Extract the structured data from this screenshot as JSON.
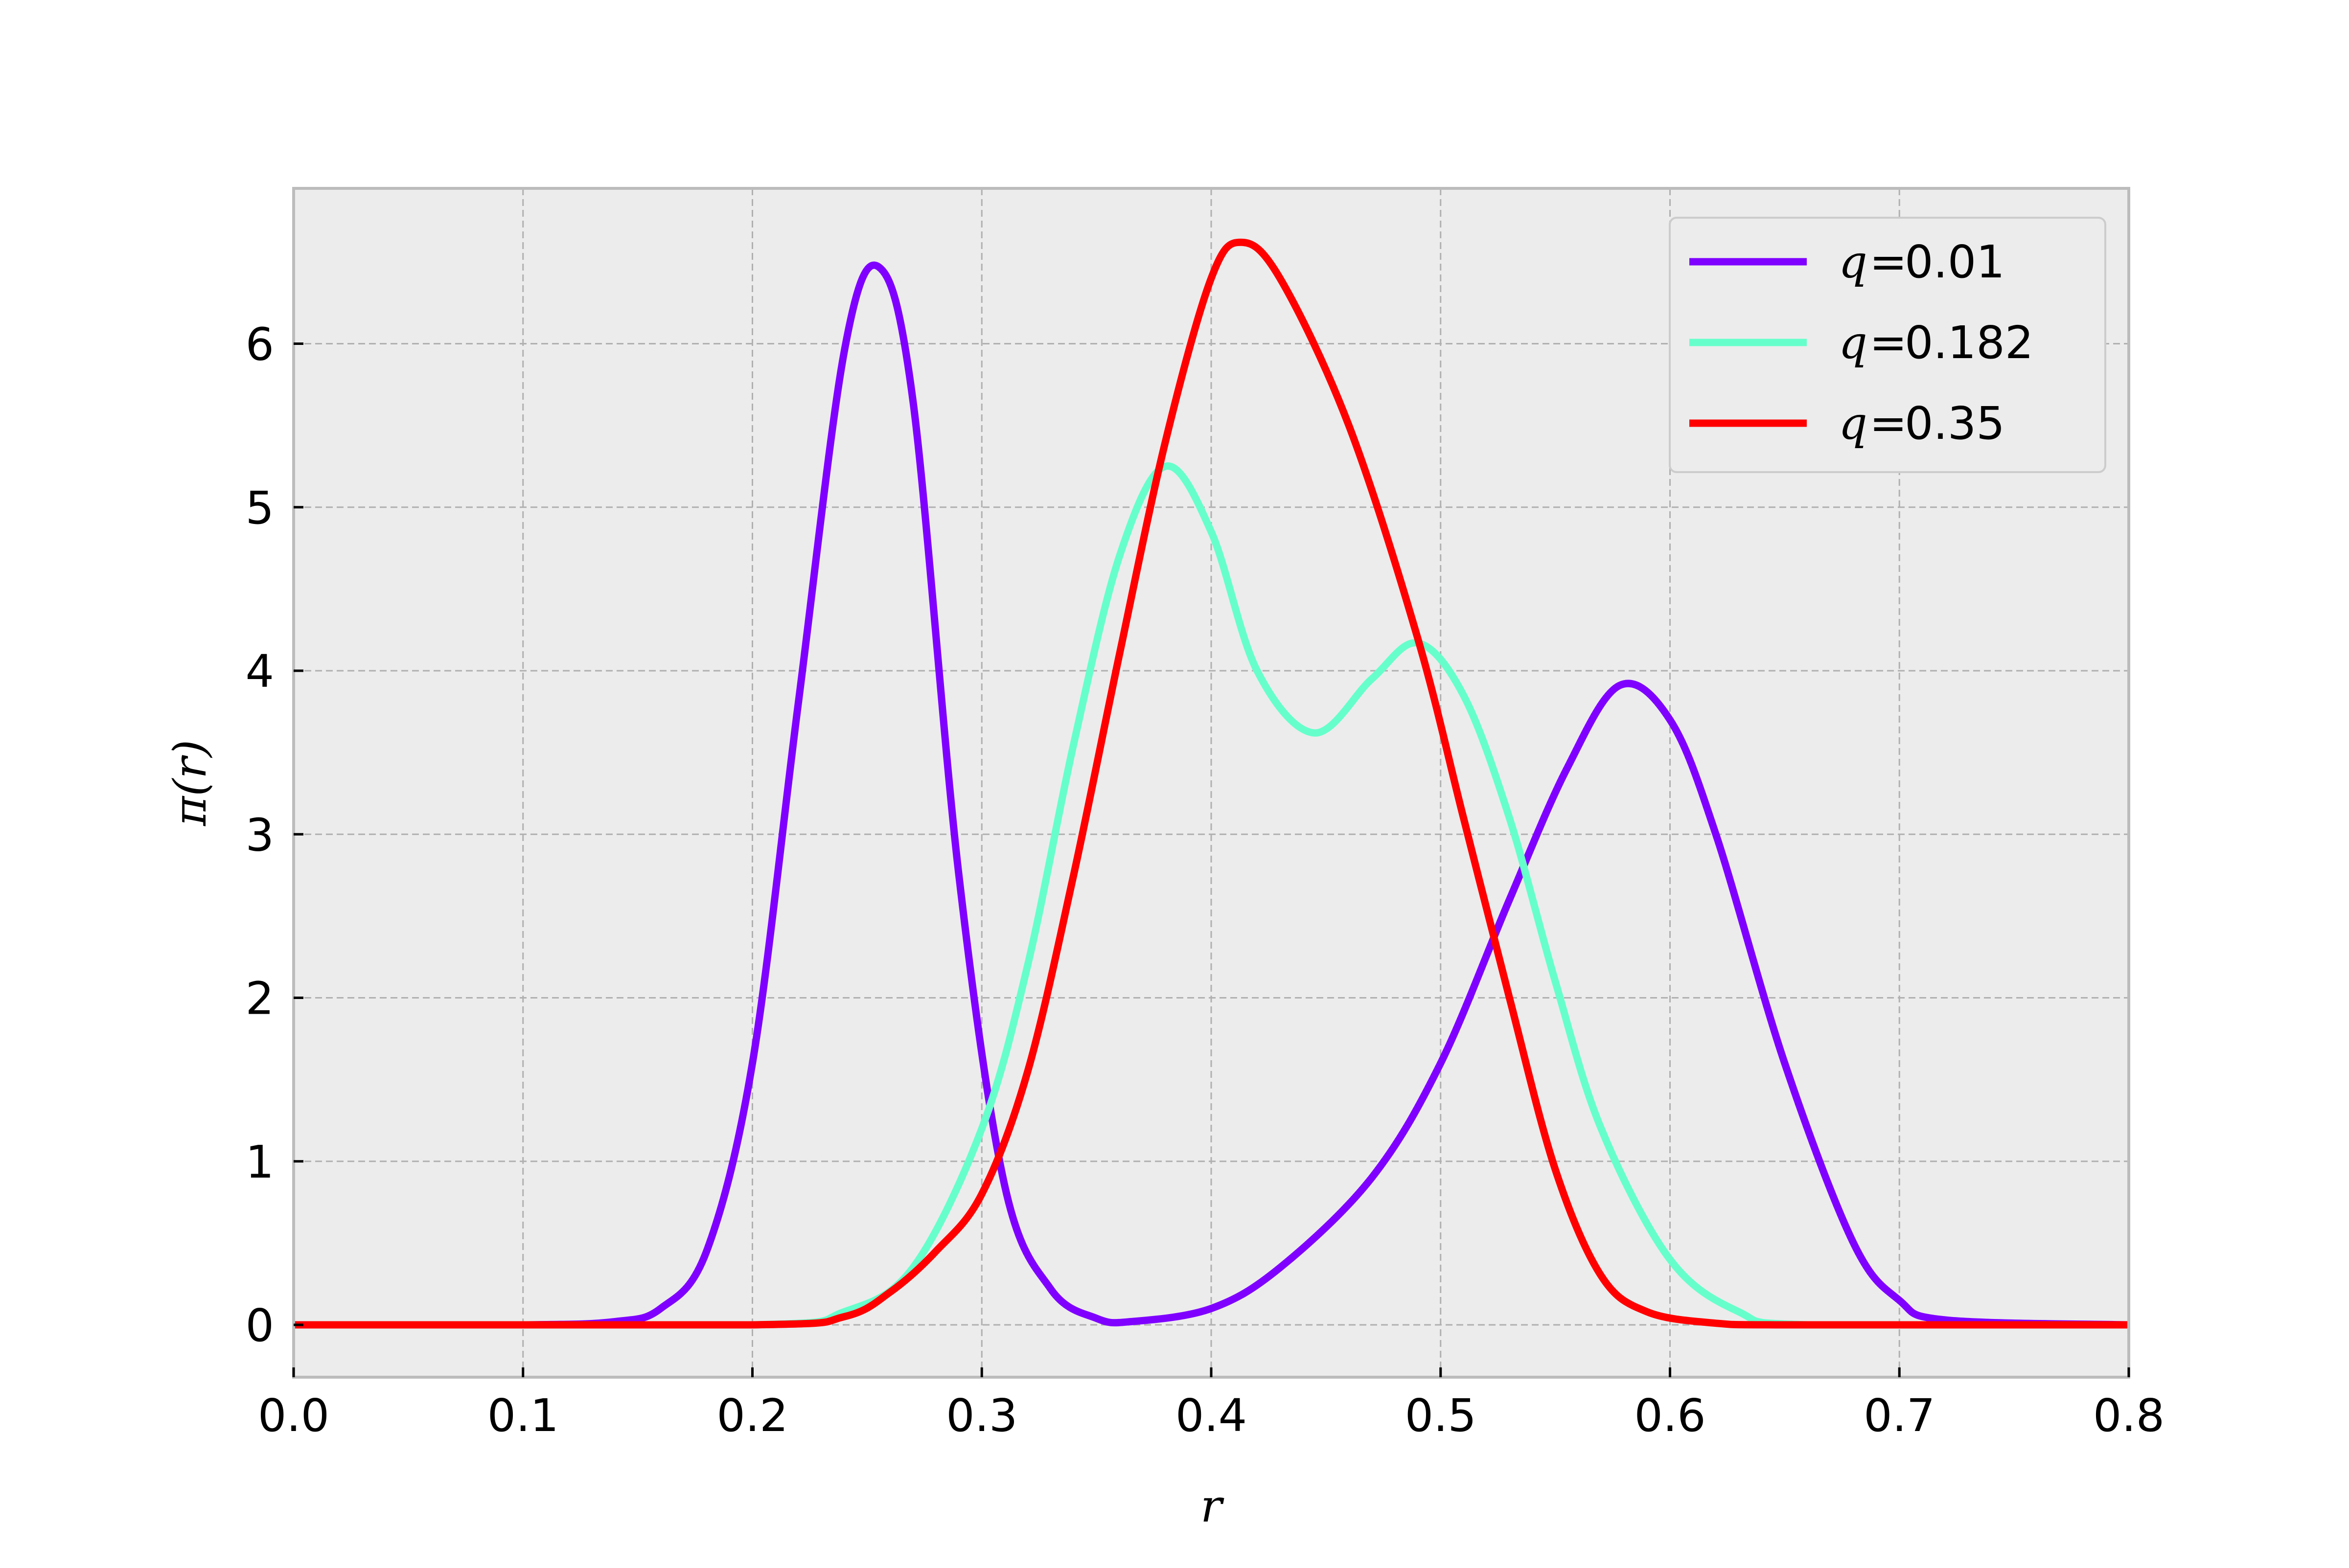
{
  "chart_data": {
    "type": "line",
    "xlabel": "r",
    "ylabel": "π(r)",
    "xlim": [
      0.0,
      0.8
    ],
    "ylim": [
      -0.32,
      6.95
    ],
    "xticks": [
      0.0,
      0.1,
      0.2,
      0.3,
      0.4,
      0.5,
      0.6,
      0.7,
      0.8
    ],
    "xtick_labels": [
      "0.0",
      "0.1",
      "0.2",
      "0.3",
      "0.4",
      "0.5",
      "0.6",
      "0.7",
      "0.8"
    ],
    "yticks": [
      0,
      1,
      2,
      3,
      4,
      5,
      6
    ],
    "ytick_labels": [
      "0",
      "1",
      "2",
      "3",
      "4",
      "5",
      "6"
    ],
    "grid": true,
    "grid_style": "dashed",
    "legend_position": "top-right",
    "background": "#ececec",
    "series": [
      {
        "name": "q = 0.01",
        "legend_var": "q",
        "legend_eq": "=",
        "legend_value": "0.01",
        "color": "#7f00ff",
        "x": [
          0.0,
          0.1,
          0.14,
          0.16,
          0.18,
          0.2,
          0.22,
          0.24,
          0.255,
          0.27,
          0.29,
          0.31,
          0.33,
          0.35,
          0.365,
          0.4,
          0.43,
          0.47,
          0.5,
          0.53,
          0.555,
          0.578,
          0.6,
          0.62,
          0.65,
          0.68,
          0.7,
          0.72,
          0.8
        ],
        "y": [
          0.0,
          0.0,
          0.02,
          0.1,
          0.45,
          1.6,
          3.8,
          5.95,
          6.47,
          5.65,
          2.75,
          0.85,
          0.22,
          0.04,
          0.02,
          0.1,
          0.35,
          0.9,
          1.6,
          2.6,
          3.4,
          3.91,
          3.7,
          3.0,
          1.6,
          0.5,
          0.15,
          0.03,
          0.0
        ]
      },
      {
        "name": "q = 0.182",
        "legend_var": "q",
        "legend_eq": "=",
        "legend_value": "0.182",
        "color": "#66ffcc",
        "x": [
          0.0,
          0.2,
          0.24,
          0.27,
          0.3,
          0.32,
          0.34,
          0.36,
          0.38,
          0.4,
          0.42,
          0.445,
          0.47,
          0.49,
          0.51,
          0.53,
          0.55,
          0.57,
          0.6,
          0.63,
          0.66,
          0.8
        ],
        "y": [
          0.0,
          0.0,
          0.08,
          0.35,
          1.2,
          2.2,
          3.55,
          4.7,
          5.25,
          4.85,
          4.0,
          3.62,
          3.95,
          4.17,
          3.85,
          3.1,
          2.1,
          1.2,
          0.4,
          0.08,
          0.0,
          0.0
        ]
      },
      {
        "name": "q = 0.35",
        "legend_var": "q",
        "legend_eq": "=",
        "legend_value": "0.35",
        "color": "#ff0000",
        "x": [
          0.0,
          0.2,
          0.24,
          0.26,
          0.28,
          0.3,
          0.32,
          0.34,
          0.36,
          0.38,
          0.4,
          0.413,
          0.43,
          0.46,
          0.49,
          0.51,
          0.53,
          0.55,
          0.57,
          0.59,
          0.62,
          0.65,
          0.8
        ],
        "y": [
          0.0,
          0.0,
          0.05,
          0.2,
          0.45,
          0.8,
          1.55,
          2.75,
          4.1,
          5.4,
          6.4,
          6.62,
          6.4,
          5.5,
          4.2,
          3.1,
          2.0,
          0.95,
          0.3,
          0.08,
          0.01,
          0.0,
          0.0
        ]
      }
    ]
  }
}
